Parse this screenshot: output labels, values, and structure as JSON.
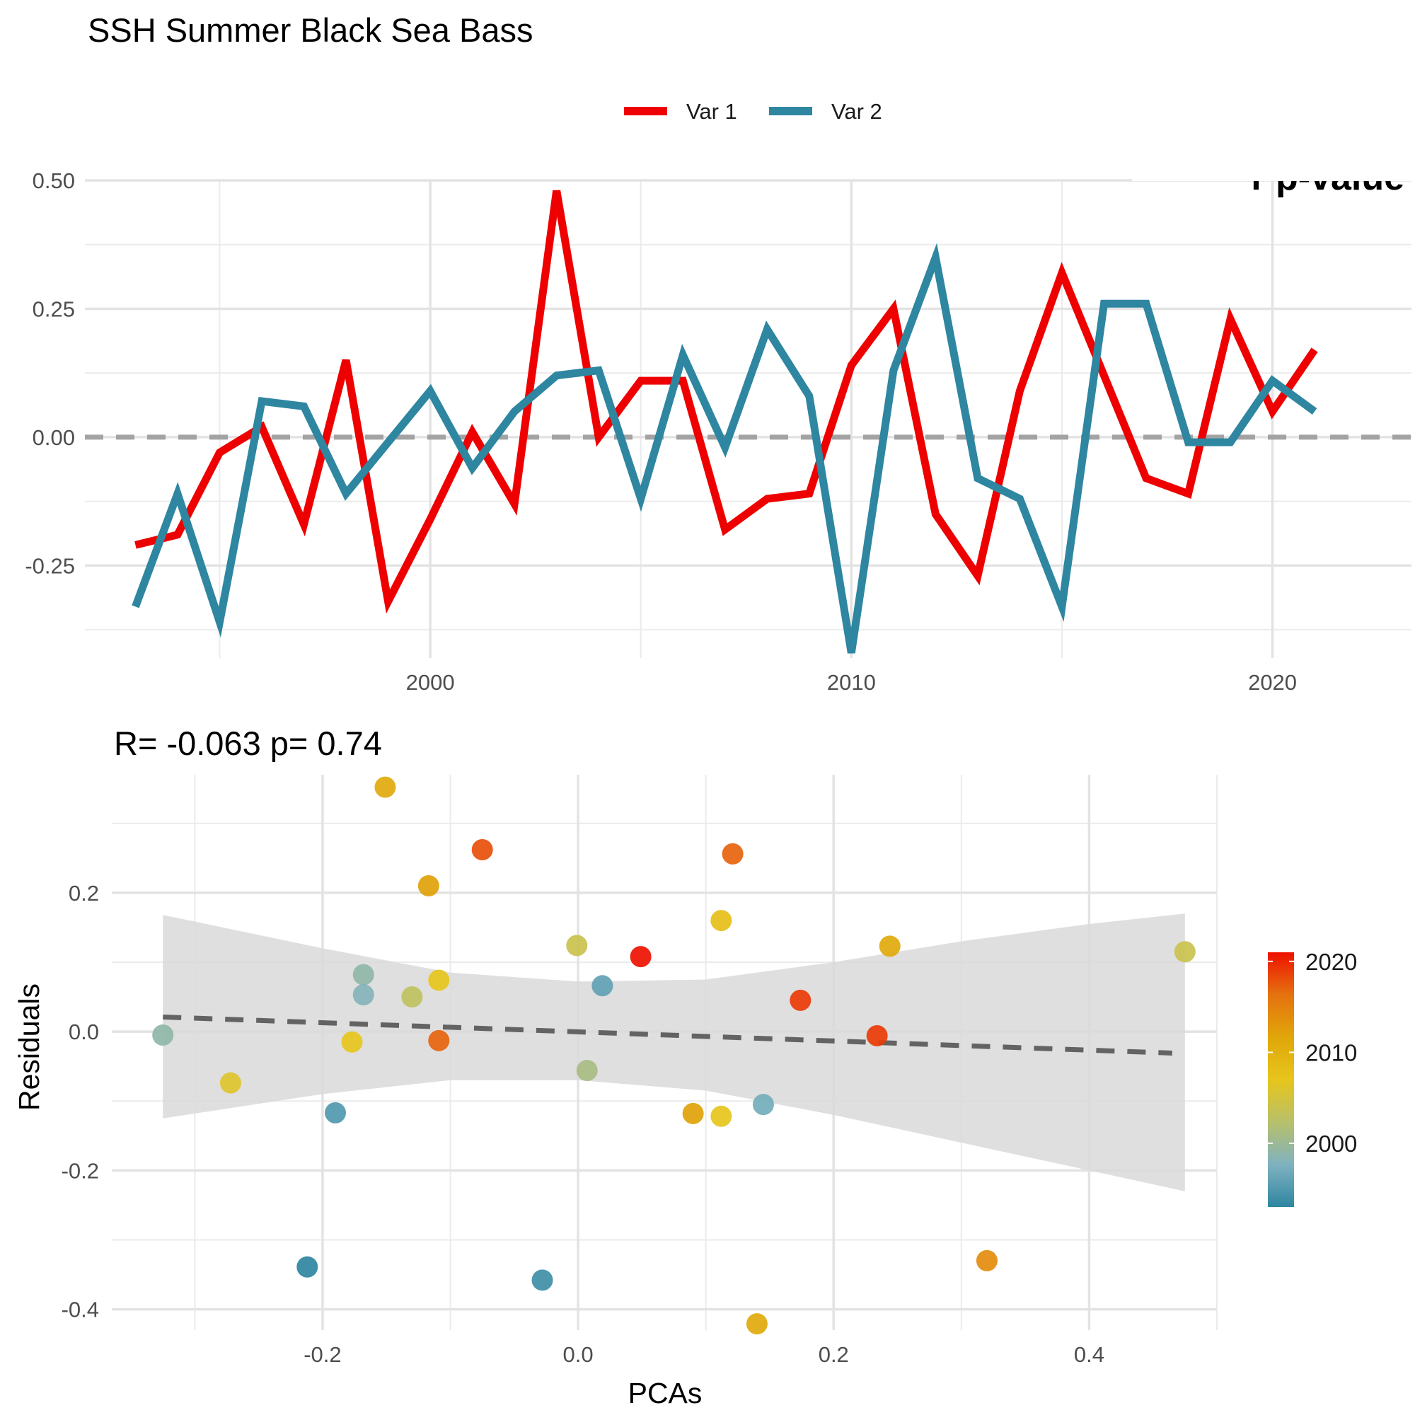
{
  "chart_data": [
    {
      "type": "line",
      "title": "SSH Summer Black Sea Bass",
      "xlabel": "",
      "ylabel": "",
      "xlim": [
        1991.8,
        2023.3
      ],
      "ylim": [
        -0.43,
        0.5
      ],
      "x_ticks": [
        2000,
        2010,
        2020
      ],
      "x_tick_labels": [
        "2000",
        "2010",
        "2020"
      ],
      "y_ticks": [
        -0.25,
        0.0,
        0.25,
        0.5
      ],
      "y_tick_labels": [
        "-0.25",
        "0.00",
        "0.25",
        "0.50"
      ],
      "grid": true,
      "reference_line": 0,
      "legend": "top-center",
      "partial_annotation": "r p-value",
      "series": [
        {
          "name": "Var 1",
          "color": "#ee0000",
          "x": [
            1993,
            1994,
            1995,
            1996,
            1997,
            1998,
            1999,
            2000,
            2001,
            2002,
            2003,
            2004,
            2005,
            2006,
            2007,
            2008,
            2009,
            2010,
            2011,
            2012,
            2013,
            2014,
            2015,
            2016,
            2017,
            2018,
            2019,
            2020,
            2021
          ],
          "y": [
            -0.21,
            -0.19,
            -0.03,
            0.02,
            -0.17,
            0.15,
            -0.32,
            -0.16,
            0.01,
            -0.13,
            0.48,
            0.0,
            0.11,
            0.11,
            -0.18,
            -0.12,
            -0.11,
            0.14,
            0.25,
            -0.15,
            -0.27,
            0.09,
            0.32,
            0.12,
            -0.08,
            -0.11,
            0.23,
            0.05,
            0.17
          ]
        },
        {
          "name": "Var 2",
          "color": "#2e86a0",
          "x": [
            1993,
            1994,
            1995,
            1996,
            1997,
            1998,
            1999,
            2000,
            2001,
            2002,
            2003,
            2004,
            2005,
            2006,
            2007,
            2008,
            2009,
            2010,
            2011,
            2012,
            2013,
            2014,
            2015,
            2016,
            2017,
            2018,
            2019,
            2020,
            2021
          ],
          "y": [
            -0.33,
            -0.11,
            -0.36,
            0.07,
            0.06,
            -0.11,
            -0.01,
            0.09,
            -0.06,
            0.05,
            0.12,
            0.13,
            -0.12,
            0.16,
            -0.02,
            0.21,
            0.08,
            -0.42,
            0.13,
            0.35,
            -0.08,
            -0.12,
            -0.33,
            0.26,
            0.26,
            -0.01,
            -0.01,
            0.11,
            0.05
          ]
        }
      ]
    },
    {
      "type": "scatter",
      "title": "R= -0.063  p= 0.74",
      "xlabel": "PCAs",
      "ylabel": "Residuals",
      "xlim": [
        -0.365,
        0.5
      ],
      "ylim": [
        -0.43,
        0.37
      ],
      "x_ticks": [
        -0.2,
        0.0,
        0.2,
        0.4
      ],
      "x_tick_labels": [
        "-0.2",
        "0.0",
        "0.2",
        "0.4"
      ],
      "y_ticks": [
        -0.4,
        -0.2,
        0.0,
        0.2
      ],
      "y_tick_labels": [
        "-0.4",
        "-0.2",
        "0.0",
        "0.2"
      ],
      "grid": true,
      "regression": {
        "x": [
          -0.325,
          0.465
        ],
        "y": [
          0.021,
          -0.031
        ],
        "ci_x": [
          -0.325,
          -0.2,
          -0.1,
          0.0,
          0.1,
          0.2,
          0.3,
          0.4,
          0.475
        ],
        "ci_lower": [
          -0.125,
          -0.09,
          -0.07,
          -0.07,
          -0.085,
          -0.12,
          -0.16,
          -0.2,
          -0.23
        ],
        "ci_upper": [
          0.168,
          0.12,
          0.085,
          0.072,
          0.075,
          0.1,
          0.13,
          0.155,
          0.17
        ]
      },
      "colorbar": {
        "labels": [
          "2020",
          "2010",
          "2000"
        ],
        "values": [
          2020,
          2010,
          2000
        ],
        "range": [
          1993,
          2021
        ],
        "colors": [
          "#2e86a0",
          "#7fb2c0",
          "#b8c06a",
          "#e7c51c",
          "#e0a60a",
          "#e5720f",
          "#ee1100"
        ]
      },
      "points": [
        {
          "x": -0.325,
          "y": -0.005,
          "year": 1999
        },
        {
          "x": -0.272,
          "y": -0.074,
          "year": 2006
        },
        {
          "x": -0.212,
          "y": -0.339,
          "year": 1993
        },
        {
          "x": -0.19,
          "y": -0.117,
          "year": 1995
        },
        {
          "x": -0.177,
          "y": -0.015,
          "year": 2007
        },
        {
          "x": -0.168,
          "y": 0.082,
          "year": 1999
        },
        {
          "x": -0.168,
          "y": 0.053,
          "year": 1998
        },
        {
          "x": -0.151,
          "y": 0.352,
          "year": 2011
        },
        {
          "x": -0.13,
          "y": 0.05,
          "year": 2003
        },
        {
          "x": -0.117,
          "y": 0.21,
          "year": 2012
        },
        {
          "x": -0.109,
          "y": 0.074,
          "year": 2007
        },
        {
          "x": -0.109,
          "y": -0.013,
          "year": 2017
        },
        {
          "x": -0.075,
          "y": 0.262,
          "year": 2018
        },
        {
          "x": -0.028,
          "y": -0.358,
          "year": 1994
        },
        {
          "x": -0.001,
          "y": 0.124,
          "year": 2004
        },
        {
          "x": 0.007,
          "y": -0.056,
          "year": 2001
        },
        {
          "x": 0.019,
          "y": 0.066,
          "year": 1996
        },
        {
          "x": 0.049,
          "y": 0.108,
          "year": 2021
        },
        {
          "x": 0.09,
          "y": -0.118,
          "year": 2012
        },
        {
          "x": 0.112,
          "y": 0.16,
          "year": 2008
        },
        {
          "x": 0.112,
          "y": -0.122,
          "year": 2007
        },
        {
          "x": 0.121,
          "y": 0.256,
          "year": 2017
        },
        {
          "x": 0.14,
          "y": -0.421,
          "year": 2011
        },
        {
          "x": 0.145,
          "y": -0.105,
          "year": 1997
        },
        {
          "x": 0.174,
          "y": 0.045,
          "year": 2019
        },
        {
          "x": 0.234,
          "y": -0.006,
          "year": 2019
        },
        {
          "x": 0.244,
          "y": 0.123,
          "year": 2011
        },
        {
          "x": 0.32,
          "y": -0.33,
          "year": 2014
        },
        {
          "x": 0.475,
          "y": 0.115,
          "year": 2004
        }
      ]
    }
  ]
}
